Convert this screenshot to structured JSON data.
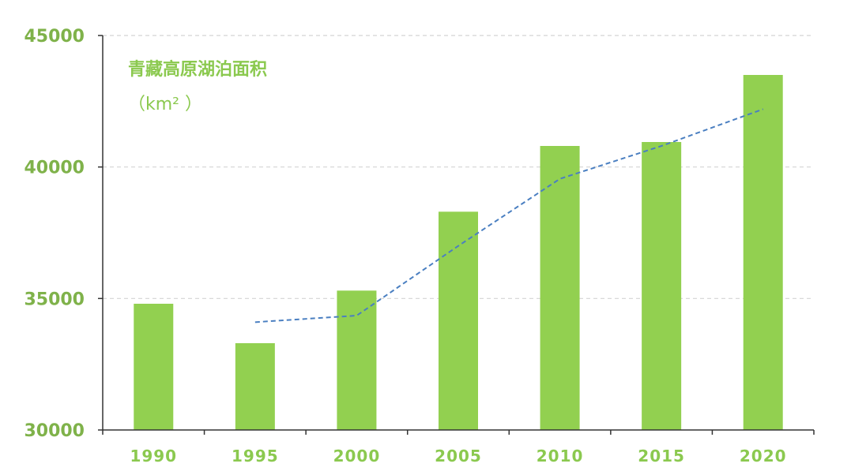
{
  "chart_data": {
    "type": "bar",
    "title": "青藏高原湖泊面积",
    "unit": "（km² ）",
    "categories": [
      "1990",
      "1995",
      "2000",
      "2005",
      "2010",
      "2015",
      "2020"
    ],
    "values": [
      34800,
      33300,
      35300,
      38300,
      40800,
      40950,
      43500
    ],
    "trend_line": {
      "style": "dashed",
      "x": [
        "1995",
        "2000",
        "2005",
        "2010",
        "2015",
        "2020"
      ],
      "values": [
        34100,
        34350,
        37000,
        39550,
        40800,
        42200
      ]
    },
    "ylim": [
      30000,
      45000
    ],
    "yticks": [
      "30000",
      "35000",
      "40000",
      "45000"
    ],
    "grid": true,
    "colors": {
      "bar": "#92d050",
      "trend": "#4a7fc1",
      "grid": "#d4d4d4",
      "axis": "#333333"
    }
  }
}
